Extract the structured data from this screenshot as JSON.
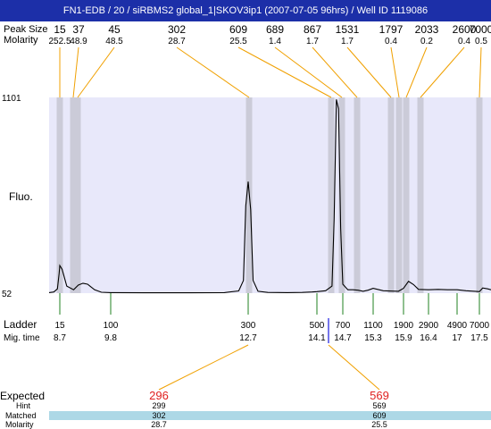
{
  "window_title": "FN1-EDB / 20 / siRBMS2 global_1|SKOV3ip1 (2007-07-05 96hrs) / Well ID 1119086",
  "labels": {
    "peak_size": "Peak Size",
    "molarity": "Molarity",
    "fluo": "Fluo.",
    "ladder": "Ladder",
    "mig_time": "Mig. time",
    "expected": "Expected",
    "hint": "Hint",
    "matched": "Matched",
    "molarity2": "Molarity"
  },
  "y_max_label": "1101",
  "y_min_label": "52",
  "peaks": [
    {
      "size": "15",
      "molarity": "252.5"
    },
    {
      "size": "37",
      "molarity": "48.9"
    },
    {
      "size": "45",
      "molarity": "48.5"
    },
    {
      "size": "302",
      "molarity": "28.7"
    },
    {
      "size": "609",
      "molarity": "25.5"
    },
    {
      "size": "689",
      "molarity": "1.4"
    },
    {
      "size": "867",
      "molarity": "1.7"
    },
    {
      "size": "1531",
      "molarity": "1.7"
    },
    {
      "size": "1797",
      "molarity": "0.4"
    },
    {
      "size": "2033",
      "molarity": "0.2"
    },
    {
      "size": "2600",
      "molarity": "0.4"
    },
    {
      "size": "7000",
      "molarity": "0.5"
    }
  ],
  "ladder": [
    {
      "size": "15",
      "time": "8.7"
    },
    {
      "size": "100",
      "time": "9.8"
    },
    {
      "size": "300",
      "time": "12.7"
    },
    {
      "size": "500",
      "time": "14.1"
    },
    {
      "size": "700",
      "time": "14.7"
    },
    {
      "size": "1100",
      "time": "15.3"
    },
    {
      "size": "1900",
      "time": "15.9"
    },
    {
      "size": "2900",
      "time": "16.4"
    },
    {
      "size": "4900",
      "time": "17"
    },
    {
      "size": "7000",
      "time": "17.5"
    }
  ],
  "expected": [
    {
      "expected": "296",
      "hint": "299",
      "matched": "302",
      "molarity": "28.7"
    },
    {
      "expected": "569",
      "hint": "569",
      "matched": "609",
      "molarity": "25.5"
    }
  ],
  "colors": {
    "title_bg": "#1c2fa8",
    "plot_bg": "#e8e8fa",
    "band": "#cbcbd8",
    "leader": "#f0a000",
    "ladder_tick": "#208020",
    "expected_text": "#e02020",
    "table_bg": "#add8e6",
    "marker": "#1a1adf"
  },
  "chart_data": {
    "type": "line",
    "x_label": "Mig. time",
    "y_label": "Fluo.",
    "ylim": [
      52,
      1101
    ],
    "x": [
      7.8,
      8.2,
      8.5,
      8.65,
      8.7,
      8.75,
      8.85,
      9.0,
      9.1,
      9.2,
      9.3,
      9.35,
      9.45,
      9.6,
      9.8,
      10.5,
      11.5,
      12.2,
      12.5,
      12.6,
      12.65,
      12.7,
      12.75,
      12.8,
      12.9,
      13.1,
      13.5,
      13.8,
      14.0,
      14.1,
      14.3,
      14.45,
      14.5,
      14.55,
      14.6,
      14.65,
      14.7,
      14.8,
      14.9,
      15.0,
      15.1,
      15.2,
      15.3,
      15.5,
      15.8,
      15.9,
      16.0,
      16.1,
      16.2,
      16.4,
      16.6,
      16.8,
      17.0,
      17.2,
      17.4,
      17.5,
      17.6,
      17.75,
      17.85
    ],
    "y": [
      55,
      58,
      75,
      160,
      200,
      180,
      90,
      70,
      95,
      105,
      100,
      90,
      70,
      57,
      55,
      54,
      54,
      55,
      64,
      120,
      520,
      650,
      500,
      120,
      62,
      56,
      55,
      56,
      58,
      60,
      65,
      90,
      450,
      1090,
      1040,
      400,
      100,
      70,
      70,
      68,
      62,
      68,
      78,
      65,
      62,
      78,
      115,
      98,
      72,
      70,
      72,
      70,
      70,
      65,
      62,
      60,
      80,
      75,
      70
    ],
    "ladder_times": [
      8.7,
      9.8,
      12.7,
      14.1,
      14.7,
      15.3,
      15.9,
      16.4,
      17,
      17.5
    ],
    "peak_times": [
      8.7,
      9.2,
      9.3,
      12.7,
      14.6,
      14.95,
      15.1,
      15.75,
      15.88,
      15.97,
      16.1,
      17.55
    ]
  }
}
